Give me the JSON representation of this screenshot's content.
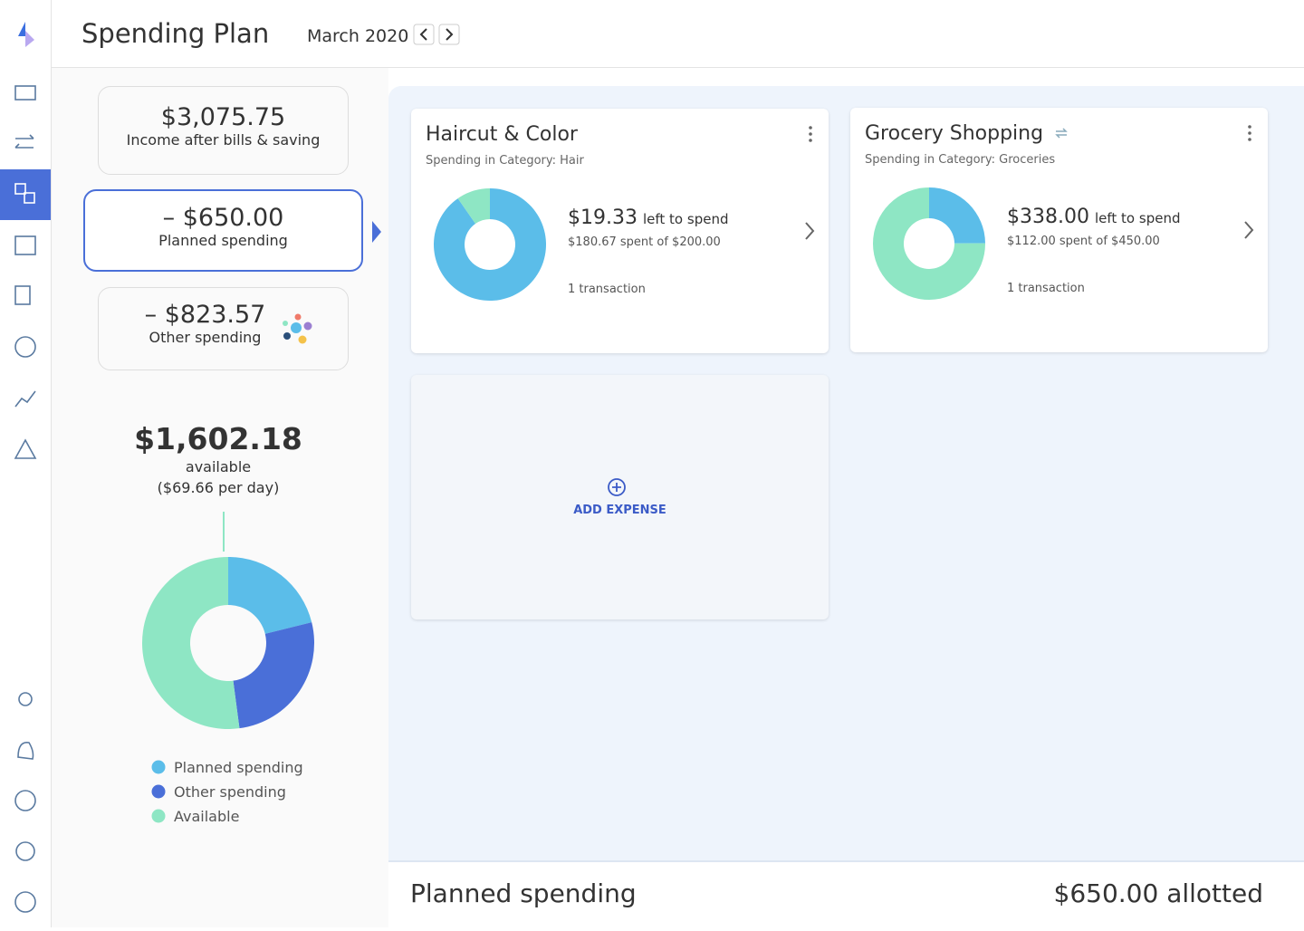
{
  "nav": {
    "title": "Spending Plan",
    "month": "March 2020"
  },
  "summary": {
    "income": {
      "amount": "$3,075.75",
      "label": "Income after bills & saving"
    },
    "planned": {
      "amount": "– $650.00",
      "label": "Planned spending"
    },
    "other": {
      "amount": "– $823.57",
      "label": "Other spending"
    },
    "available": {
      "amount": "$1,602.18",
      "label": "available",
      "per_day": "($69.66 per day)"
    }
  },
  "chart_data": {
    "type": "pie",
    "categories": [
      "Planned spending",
      "Other spending",
      "Available"
    ],
    "values": [
      650,
      823.57,
      1602.18
    ],
    "colors": [
      "#5bbde9",
      "#4a6fd8",
      "#8ee6c4"
    ]
  },
  "cards": [
    {
      "title": "Haircut & Color",
      "subtitle": "Spending in Category: Hair",
      "left": "$19.33",
      "left_text": "left to spend",
      "spent": "$180.67 spent of $200.00",
      "transactions": "1 transaction",
      "chart": {
        "type": "pie",
        "values": [
          180.67,
          19.33
        ],
        "colors": [
          "#5bbde9",
          "#8ee6c4"
        ]
      }
    },
    {
      "title": "Grocery Shopping",
      "subtitle": "Spending in Category: Groceries",
      "left": "$338.00",
      "left_text": "left to spend",
      "spent": "$112.00 spent of $450.00",
      "transactions": "1 transaction",
      "chart": {
        "type": "pie",
        "values": [
          112,
          338
        ],
        "colors": [
          "#5bbde9",
          "#8ee6c4"
        ]
      }
    }
  ],
  "add_expense": "ADD EXPENSE",
  "footer": {
    "title": "Planned spending",
    "total": "$650.00 allotted"
  }
}
